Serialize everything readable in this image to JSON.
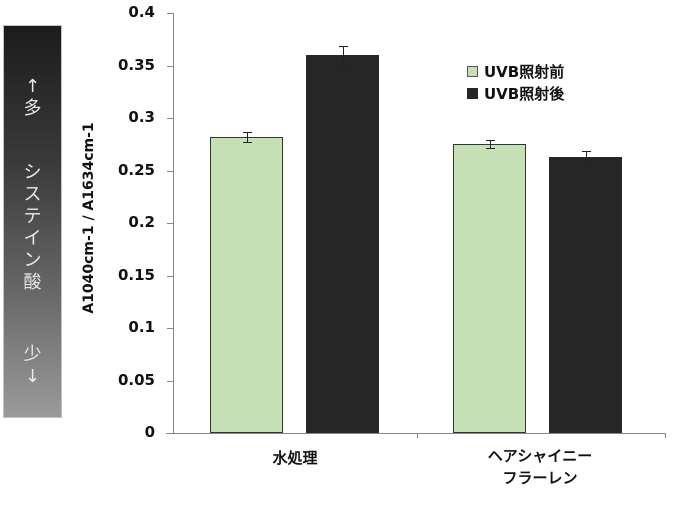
{
  "side_panel": {
    "top_label": "↑多",
    "middle_label": "システイン酸",
    "bottom_label": "少↓"
  },
  "legend": {
    "items": [
      {
        "label": "UVB照射前",
        "color": "#c5e0b4"
      },
      {
        "label": "UVB照射後",
        "color": "#262626"
      }
    ]
  },
  "axis": {
    "ylabel": "A1040cm-1 / A1634cm-1",
    "yticks": [
      "0.4",
      "0.35",
      "0.3",
      "0.25",
      "0.2",
      "0.15",
      "0.1",
      "0.05",
      "0"
    ]
  },
  "categories": [
    {
      "label_line1": "水処理",
      "label_line2": ""
    },
    {
      "label_line1": "ヘアシャイニー",
      "label_line2": "フラーレン"
    }
  ],
  "chart_data": {
    "type": "bar",
    "title": "",
    "xlabel": "",
    "ylabel": "A1040cm-1 / A1634cm-1",
    "ylim": [
      0,
      0.4
    ],
    "yticks": [
      0,
      0.05,
      0.1,
      0.15,
      0.2,
      0.25,
      0.3,
      0.35,
      0.4
    ],
    "grid": false,
    "legend_position": "upper right",
    "categories": [
      "水処理",
      "ヘアシャイニーフラーレン"
    ],
    "series": [
      {
        "name": "UVB照射前",
        "color": "#c5e0b4",
        "values": [
          0.282,
          0.275
        ],
        "errors": [
          0.005,
          0.004
        ]
      },
      {
        "name": "UVB照射後",
        "color": "#262626",
        "values": [
          0.36,
          0.263
        ],
        "errors": [
          0.009,
          0.006
        ]
      }
    ],
    "annotations": [
      "↑多 システイン酸 少↓"
    ]
  }
}
